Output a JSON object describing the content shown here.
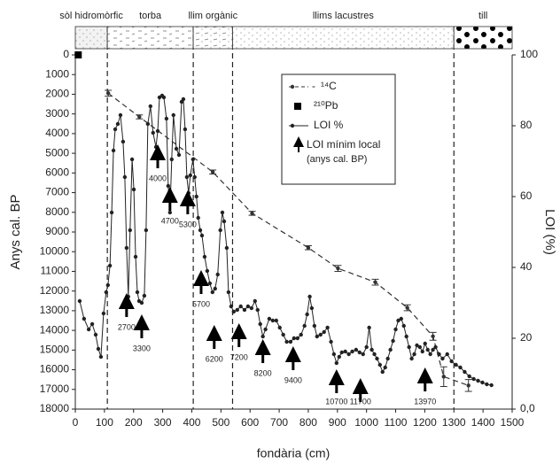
{
  "chart_data": {
    "type": "depth-profile",
    "xlabel": "fondària (cm)",
    "ylabel": "Anys cal. BP",
    "y2label": "LOI (%)",
    "xlim": [
      0,
      1500
    ],
    "xticks": [
      0,
      100,
      200,
      300,
      400,
      500,
      600,
      700,
      800,
      900,
      1000,
      1100,
      1200,
      1300,
      1400,
      1500
    ],
    "ylim": [
      0,
      18000
    ],
    "y_inverted": true,
    "yticks": [
      0,
      1000,
      2000,
      3000,
      4000,
      5000,
      6000,
      7000,
      8000,
      9000,
      10000,
      11000,
      12000,
      13000,
      14000,
      15000,
      16000,
      17000,
      18000
    ],
    "y2lim": [
      0,
      100
    ],
    "y2ticks": [
      {
        "value": 0,
        "label": "0,0"
      },
      20,
      40,
      60,
      80,
      100
    ],
    "units": [
      {
        "label": "sòl hidromòrfic",
        "from": 0,
        "to": 110
      },
      {
        "label": "torba",
        "from": 110,
        "to": 405
      },
      {
        "label": "llim orgànic",
        "from": 405,
        "to": 540
      },
      {
        "label": "llims lacustres",
        "from": 540,
        "to": 1300
      },
      {
        "label": "till",
        "from": 1300,
        "to": 1500
      }
    ],
    "series": [
      {
        "name": "¹⁴C",
        "legend_prefix": "-",
        "color": "#333333",
        "dashed": true,
        "marker": "dot",
        "x": [
          113,
          220,
          472,
          607,
          800,
          902,
          1030,
          1140,
          1228,
          1265,
          1350
        ],
        "values": [
          1950,
          3150,
          5950,
          8050,
          9800,
          10850,
          11550,
          12850,
          14300,
          16350,
          16800
        ],
        "errors": [
          150,
          100,
          100,
          100,
          100,
          150,
          150,
          150,
          200,
          500,
          300
        ]
      },
      {
        "name": "²¹⁰Pb",
        "color": "#000000",
        "marker": "square",
        "x": [
          10
        ],
        "values": [
          0
        ]
      },
      {
        "name": "LOI %",
        "color": "#222222",
        "marker": "dot",
        "axis": "y2",
        "x": [
          15,
          30,
          46,
          58,
          70,
          79,
          88,
          97,
          106,
          112,
          119,
          125,
          131,
          137,
          146,
          155,
          164,
          170,
          176,
          182,
          188,
          195,
          201,
          207,
          213,
          219,
          228,
          237,
          243,
          249,
          258,
          267,
          277,
          283,
          289,
          298,
          304,
          313,
          319,
          325,
          331,
          337,
          347,
          356,
          365,
          371,
          377,
          383,
          389,
          395,
          404,
          410,
          416,
          422,
          429,
          435,
          444,
          453,
          462,
          471,
          480,
          489,
          498,
          505,
          511,
          520,
          526,
          535,
          544,
          556,
          568,
          581,
          593,
          605,
          617,
          626,
          635,
          644,
          653,
          666,
          678,
          690,
          702,
          714,
          726,
          739,
          751,
          763,
          775,
          787,
          796,
          805,
          812,
          821,
          830,
          842,
          854,
          866,
          878,
          888,
          897,
          906,
          915,
          927,
          939,
          951,
          964,
          976,
          988,
          1000,
          1009,
          1018,
          1027,
          1036,
          1046,
          1055,
          1064,
          1073,
          1082,
          1091,
          1100,
          1109,
          1119,
          1128,
          1137,
          1146,
          1155,
          1164,
          1173,
          1183,
          1192,
          1201,
          1210,
          1219,
          1228,
          1237,
          1249,
          1261,
          1277,
          1292,
          1307,
          1322,
          1337,
          1353,
          1368,
          1383,
          1398,
          1413,
          1429
        ],
        "values": [
          30.5,
          25.5,
          22.5,
          24,
          21,
          17,
          14.75,
          27,
          33,
          35,
          40.5,
          55.5,
          73,
          79,
          80.5,
          83,
          75.5,
          65.5,
          45.5,
          31.75,
          50.5,
          70.5,
          62,
          43,
          33,
          30.5,
          30,
          32,
          50.5,
          80.5,
          85.5,
          78,
          74,
          78.5,
          88,
          88.5,
          88,
          82,
          63,
          55.5,
          70.5,
          83,
          73.5,
          71.75,
          86.75,
          87.5,
          79,
          65.5,
          61,
          66,
          70.5,
          65.5,
          60,
          54,
          50.5,
          49,
          43,
          39,
          35.5,
          33,
          34,
          38,
          50.5,
          55.5,
          53,
          45.5,
          33,
          29,
          27.5,
          28,
          29,
          28,
          29,
          28.5,
          30.5,
          28,
          24,
          20.5,
          22.5,
          25.5,
          25,
          25,
          23,
          21,
          19,
          19,
          20,
          20,
          21,
          23.5,
          26.75,
          31.75,
          28.5,
          23.5,
          20.5,
          21,
          21.75,
          23,
          19,
          15.5,
          13,
          14.75,
          16,
          16.25,
          15.5,
          16.25,
          16.75,
          16,
          15.5,
          17.5,
          23,
          16.75,
          15.5,
          14.25,
          12.5,
          10.5,
          11.75,
          14.25,
          16.75,
          19.25,
          22.5,
          25,
          25.5,
          23.5,
          20.5,
          17.5,
          14.25,
          15.5,
          18,
          17.5,
          16.25,
          18.5,
          16.75,
          15.5,
          16.75,
          17.5,
          15.5,
          14.25,
          15.5,
          13.5,
          12.5,
          11.75,
          10.5,
          9.25,
          8.5,
          8,
          7.5,
          7,
          6.75
        ]
      }
    ],
    "arrow_legend": [
      "LOI mínim local",
      "(anys cal. BP)"
    ],
    "annotations": [
      {
        "label": "2700",
        "x": 176,
        "y2": 32
      },
      {
        "label": "3300",
        "x": 228,
        "y2": 26
      },
      {
        "label": "4000",
        "x": 283,
        "y2": 74
      },
      {
        "label": "4700",
        "x": 325,
        "y2": 62
      },
      {
        "label": "5300",
        "x": 386,
        "y2": 61
      },
      {
        "label": "5700",
        "x": 432,
        "y2": 38.5
      },
      {
        "label": "6200",
        "x": 477,
        "y2": 23
      },
      {
        "label": "7200",
        "x": 562,
        "y2": 23.5
      },
      {
        "label": "8200",
        "x": 644,
        "y2": 19
      },
      {
        "label": "9400",
        "x": 748,
        "y2": 17
      },
      {
        "label": "10700",
        "x": 897,
        "y2": 10.5
      },
      {
        "label": "11700",
        "x": 979,
        "y2": 8
      },
      {
        "label": "13970",
        "x": 1201,
        "y2": 11
      }
    ]
  }
}
